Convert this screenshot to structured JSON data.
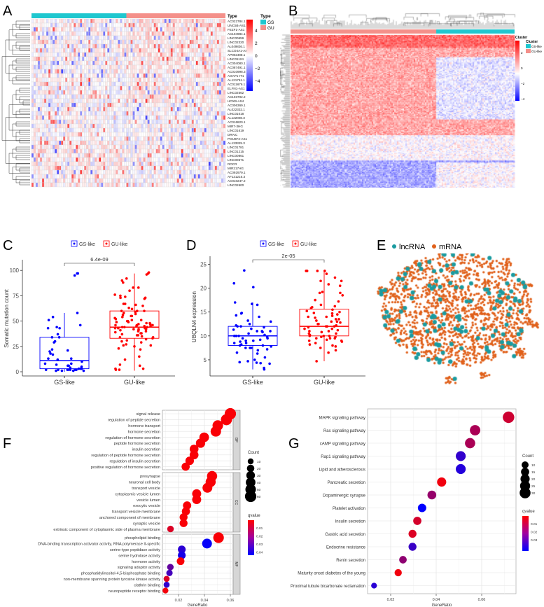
{
  "colors": {
    "gs_annot": "#1fc7cf",
    "gu_annot": "#f4908a",
    "heat_high": "#ff0000",
    "heat_mid": "#ffffff",
    "heat_low": "#0000ff",
    "gs_box": "#0000ff",
    "gu_box": "#ff0000",
    "lncrna": "#1a9ba0",
    "mrna": "#e0601a"
  },
  "chart_data": [
    {
      "panel": "A",
      "type": "heatmap",
      "legend_type_title": "Type",
      "legend_type_items": [
        "GS",
        "GU"
      ],
      "row_header": "Type",
      "colorbar_ticks": [
        "4",
        "2",
        "0",
        "−2",
        "−4"
      ],
      "rows": [
        "AC022784.1",
        "UNC5B-AS1",
        "FEZF1-AS1",
        "AC104984.1",
        "LINC00659",
        "LINC02320",
        "AL049836.1",
        "SLCO4A1-AS1",
        "AP002498.1",
        "LINC01124",
        "AC004080.1",
        "AC087491.1",
        "AC010998.3",
        "AGAP1-IT1",
        "AL121761.1",
        "AC011676.1",
        "ELFN1-AS1",
        "LINC02562",
        "AC103702.2",
        "HOXB-AS4",
        "AC006369.1",
        "AL022332.1",
        "LINC01018",
        "AL122008.3",
        "AC016820.1",
        "MIR7-3HG",
        "LINC01619",
        "DRAIC",
        "POU6F2-AS1",
        "AL133325.3",
        "LINC01781",
        "LINC01215",
        "LINC00861",
        "LINC00671",
        "ROCR",
        "MIR217HG",
        "AC092979.1",
        "AF131216.3",
        "AC010247.2",
        "LINC02600"
      ]
    },
    {
      "panel": "B",
      "type": "heatmap",
      "legend_title": "Cluster",
      "annotation_label": "Cluster",
      "legend_items": [
        "GS-like",
        "GU-like"
      ],
      "colorbar_ticks": [
        "2",
        "0",
        "−2",
        "−4"
      ]
    },
    {
      "panel": "C",
      "type": "box",
      "legend": [
        "GS-like",
        "GU-like"
      ],
      "categories": [
        "GS-like",
        "GU-like"
      ],
      "ylabel": "Somatic mutation count",
      "ylim": [
        0,
        105
      ],
      "yticks": [
        0,
        25,
        50,
        75,
        100
      ],
      "pvalue": "6.4e-09",
      "boxes": [
        {
          "q1": 3,
          "median": 11,
          "q3": 34,
          "whisker_low": 0,
          "whisker_high": 58
        },
        {
          "q1": 33,
          "median": 44,
          "q3": 60,
          "whisker_low": 1,
          "whisker_high": 97
        }
      ],
      "points": [
        [
          97,
          97,
          95,
          58,
          54,
          51,
          46,
          44,
          43,
          43,
          37,
          34,
          34,
          30,
          29,
          22,
          21,
          20,
          18,
          17,
          13,
          13,
          12,
          10,
          8,
          8,
          7,
          6,
          6,
          5,
          4,
          3,
          3,
          2,
          2,
          2,
          2,
          2,
          2,
          1,
          1,
          1,
          1,
          2,
          3
        ],
        [
          98,
          97,
          96,
          92,
          90,
          88,
          83,
          83,
          80,
          76,
          75,
          74,
          73,
          73,
          72,
          67,
          67,
          66,
          65,
          63,
          62,
          60,
          60,
          60,
          59,
          58,
          57,
          56,
          55,
          55,
          54,
          53,
          52,
          51,
          51,
          50,
          50,
          49,
          49,
          48,
          48,
          47,
          47,
          46,
          46,
          46,
          45,
          45,
          45,
          44,
          44,
          44,
          43,
          43,
          43,
          42,
          42,
          42,
          41,
          41,
          40,
          40,
          39,
          38,
          38,
          37,
          36,
          36,
          35,
          34,
          34,
          33,
          32,
          31,
          30,
          29,
          27,
          26,
          26,
          25,
          23,
          22,
          15,
          12,
          7,
          6,
          3,
          3,
          2,
          2
        ]
      ]
    },
    {
      "panel": "D",
      "type": "box",
      "legend": [
        "GS-like",
        "GU-like"
      ],
      "categories": [
        "GS-like",
        "GU-like"
      ],
      "ylabel": "UBQLN4 expression",
      "ylim": [
        2.5,
        25.5
      ],
      "yticks": [
        5,
        10,
        15,
        20,
        25
      ],
      "pvalue": "2e-05",
      "boxes": [
        {
          "q1": 8,
          "median": 10,
          "q3": 12,
          "whisker_low": 3,
          "whisker_high": 17
        },
        {
          "q1": 10,
          "median": 12,
          "q3": 15.6,
          "whisker_low": 4.7,
          "whisker_high": 23.5
        }
      ],
      "points": [
        [
          23.7,
          21,
          20.2,
          17,
          16.7,
          16.5,
          14.8,
          14.7,
          14.3,
          14,
          13.2,
          13,
          12.5,
          12.2,
          12,
          12,
          11.8,
          11.5,
          11.3,
          11,
          11,
          11,
          10.8,
          10.5,
          10.2,
          10,
          10,
          10,
          9.8,
          9.5,
          9.5,
          9.2,
          9,
          9,
          8.8,
          8.5,
          8.5,
          8.2,
          8,
          8,
          7.8,
          7.5,
          7.5,
          7.5,
          7.2,
          7,
          6.5,
          6.3,
          5.5,
          5,
          4.7,
          4.5,
          4.4,
          4.3,
          4.2,
          3.3,
          3
        ],
        [
          23.6,
          23.6,
          23.6,
          23.6,
          23,
          22.2,
          21.5,
          21.5,
          20.8,
          20.5,
          19.2,
          19,
          19,
          18.5,
          17.5,
          17.2,
          16.5,
          16.2,
          16,
          15.8,
          15.5,
          15.2,
          15,
          14.8,
          14.7,
          14.5,
          14.2,
          14,
          14,
          13.8,
          13.5,
          13.5,
          13.2,
          13,
          13,
          12.8,
          12.5,
          12.5,
          12.2,
          12,
          12,
          12,
          11.8,
          11.5,
          11.5,
          11.2,
          11,
          11,
          10.8,
          10.5,
          10.5,
          10.2,
          10,
          10,
          10,
          9.8,
          9.8,
          9.5,
          9.5,
          9.5,
          9.2,
          9,
          9,
          8.8,
          8.5,
          8.2,
          8,
          7.8,
          7.5,
          7,
          6.5,
          4.7
        ]
      ]
    },
    {
      "panel": "E",
      "type": "network",
      "legend": [
        "lncRNA",
        "mRNA"
      ]
    },
    {
      "panel": "F",
      "type": "scatter",
      "xlabel": "GeneRatio",
      "xticks": [
        "0.02",
        "0.04",
        "0.06"
      ],
      "xlim": [
        0.008,
        0.062
      ],
      "size_title": "Count",
      "size_ticks": [
        10,
        20,
        30,
        40,
        50,
        60
      ],
      "color_title": "qvalue",
      "color_ticks": [
        "0.01",
        "0.02",
        "0.03",
        "0.04"
      ],
      "facets": [
        {
          "name": "BP",
          "terms": [
            {
              "term": "signal release",
              "ratio": 0.06,
              "count": 60,
              "q": 0.001
            },
            {
              "term": "regulation of peptide secretion",
              "ratio": 0.057,
              "count": 57,
              "q": 0.001
            },
            {
              "term": "hormone transport",
              "ratio": 0.0503,
              "count": 50,
              "q": 0.001
            },
            {
              "term": "hormone secretion",
              "ratio": 0.0488,
              "count": 49,
              "q": 0.001
            },
            {
              "term": "regulation of hormone secretion",
              "ratio": 0.0398,
              "count": 40,
              "q": 0.001
            },
            {
              "term": "peptide hormone secretion",
              "ratio": 0.037,
              "count": 37,
              "q": 0.001
            },
            {
              "term": "insulin secretion",
              "ratio": 0.032,
              "count": 32,
              "q": 0.001
            },
            {
              "term": "regulation of peptide hormone secretion",
              "ratio": 0.032,
              "count": 32,
              "q": 0.001
            },
            {
              "term": "regulation of insulin secretion",
              "ratio": 0.0286,
              "count": 29,
              "q": 0.001
            },
            {
              "term": "positive regulation of hormone secretion",
              "ratio": 0.0255,
              "count": 26,
              "q": 0.001
            }
          ]
        },
        {
          "name": "CC",
          "terms": [
            {
              "term": "presynapse",
              "ratio": 0.0459,
              "count": 46,
              "q": 0.001
            },
            {
              "term": "neuronal cell body",
              "ratio": 0.0448,
              "count": 45,
              "q": 0.001
            },
            {
              "term": "transport vesicle",
              "ratio": 0.0423,
              "count": 42,
              "q": 0.001
            },
            {
              "term": "cytoplasmic vesicle lumen",
              "ratio": 0.034,
              "count": 34,
              "q": 0.001
            },
            {
              "term": "vesicle lumen",
              "ratio": 0.034,
              "count": 34,
              "q": 0.001
            },
            {
              "term": "exocytic vesicle",
              "ratio": 0.0266,
              "count": 27,
              "q": 0.001
            },
            {
              "term": "transport vesicle membrane",
              "ratio": 0.0257,
              "count": 26,
              "q": 0.001
            },
            {
              "term": "anchored component of membrane",
              "ratio": 0.0239,
              "count": 24,
              "q": 0.001
            },
            {
              "term": "synaptic vesicle",
              "ratio": 0.0239,
              "count": 24,
              "q": 0.001
            },
            {
              "term": "extrinsic component of cytoplasmic side of plasma membrane",
              "ratio": 0.0138,
              "count": 14,
              "q": 0.006
            }
          ]
        },
        {
          "name": "MF",
          "terms": [
            {
              "term": "phospholipid binding",
              "ratio": 0.0509,
              "count": 51,
              "q": 0.001
            },
            {
              "term": "DNA-binding transcription activator activity, RNA polymerase II-specific",
              "ratio": 0.042,
              "count": 42,
              "q": 0.041
            },
            {
              "term": "serine-type peptidase activity",
              "ratio": 0.0225,
              "count": 23,
              "q": 0.035
            },
            {
              "term": "serine hydrolase activity",
              "ratio": 0.0225,
              "count": 23,
              "q": 0.038
            },
            {
              "term": "hormone activity",
              "ratio": 0.0216,
              "count": 22,
              "q": 0.001
            },
            {
              "term": "signaling adaptor activity",
              "ratio": 0.0137,
              "count": 14,
              "q": 0.026
            },
            {
              "term": "phosphatidylinositol-4,5-bisphosphate binding",
              "ratio": 0.013,
              "count": 13,
              "q": 0.031
            },
            {
              "term": "non-membrane spanning protein tyrosine kinase activity",
              "ratio": 0.0108,
              "count": 11,
              "q": 0.006
            },
            {
              "term": "clathrin binding",
              "ratio": 0.0108,
              "count": 11,
              "q": 0.034
            },
            {
              "term": "neuropeptide receptor binding",
              "ratio": 0.0099,
              "count": 10,
              "q": 0.002
            }
          ]
        }
      ]
    },
    {
      "panel": "G",
      "type": "scatter",
      "xlabel": "GeneRatio",
      "xticks": [
        "0.02",
        "0.04",
        "0.06"
      ],
      "xlim": [
        0.009,
        0.075
      ],
      "size_title": "Count",
      "size_ticks": [
        10,
        15,
        20,
        25,
        30
      ],
      "color_title": "qvalue",
      "color_ticks": [
        "0.01",
        "0.02",
        "0.03"
      ],
      "terms": [
        {
          "term": "MAPK signaling pathway",
          "ratio": 0.0718,
          "count": 34,
          "q": 0.007
        },
        {
          "term": "Ras signaling pathway",
          "ratio": 0.0571,
          "count": 27,
          "q": 0.012
        },
        {
          "term": "cAMP signaling pathway",
          "ratio": 0.0549,
          "count": 26,
          "q": 0.012
        },
        {
          "term": "Rap1 signaling pathway",
          "ratio": 0.0508,
          "count": 24,
          "q": 0.029
        },
        {
          "term": "Lipid and atherosclerosis",
          "ratio": 0.0508,
          "count": 24,
          "q": 0.031
        },
        {
          "term": "Pancreatic secretion",
          "ratio": 0.0424,
          "count": 20,
          "q": 0.002
        },
        {
          "term": "Dopaminergic synapse",
          "ratio": 0.0381,
          "count": 18,
          "q": 0.015
        },
        {
          "term": "Platelet activation",
          "ratio": 0.0338,
          "count": 16,
          "q": 0.036
        },
        {
          "term": "Insulin secretion",
          "ratio": 0.0317,
          "count": 15,
          "q": 0.006
        },
        {
          "term": "Gastric acid secretion",
          "ratio": 0.0296,
          "count": 14,
          "q": 0.005
        },
        {
          "term": "Endocrine resistance",
          "ratio": 0.0296,
          "count": 14,
          "q": 0.028
        },
        {
          "term": "Renin secretion",
          "ratio": 0.0254,
          "count": 12,
          "q": 0.016
        },
        {
          "term": "Maturity onset diabetes of the young",
          "ratio": 0.0233,
          "count": 11,
          "q": 0.002
        },
        {
          "term": "Proximal tubule bicarbonate reclamation",
          "ratio": 0.0127,
          "count": 6,
          "q": 0.03
        }
      ]
    }
  ],
  "panel_labels": [
    "A",
    "B",
    "C",
    "D",
    "E",
    "F",
    "G"
  ]
}
